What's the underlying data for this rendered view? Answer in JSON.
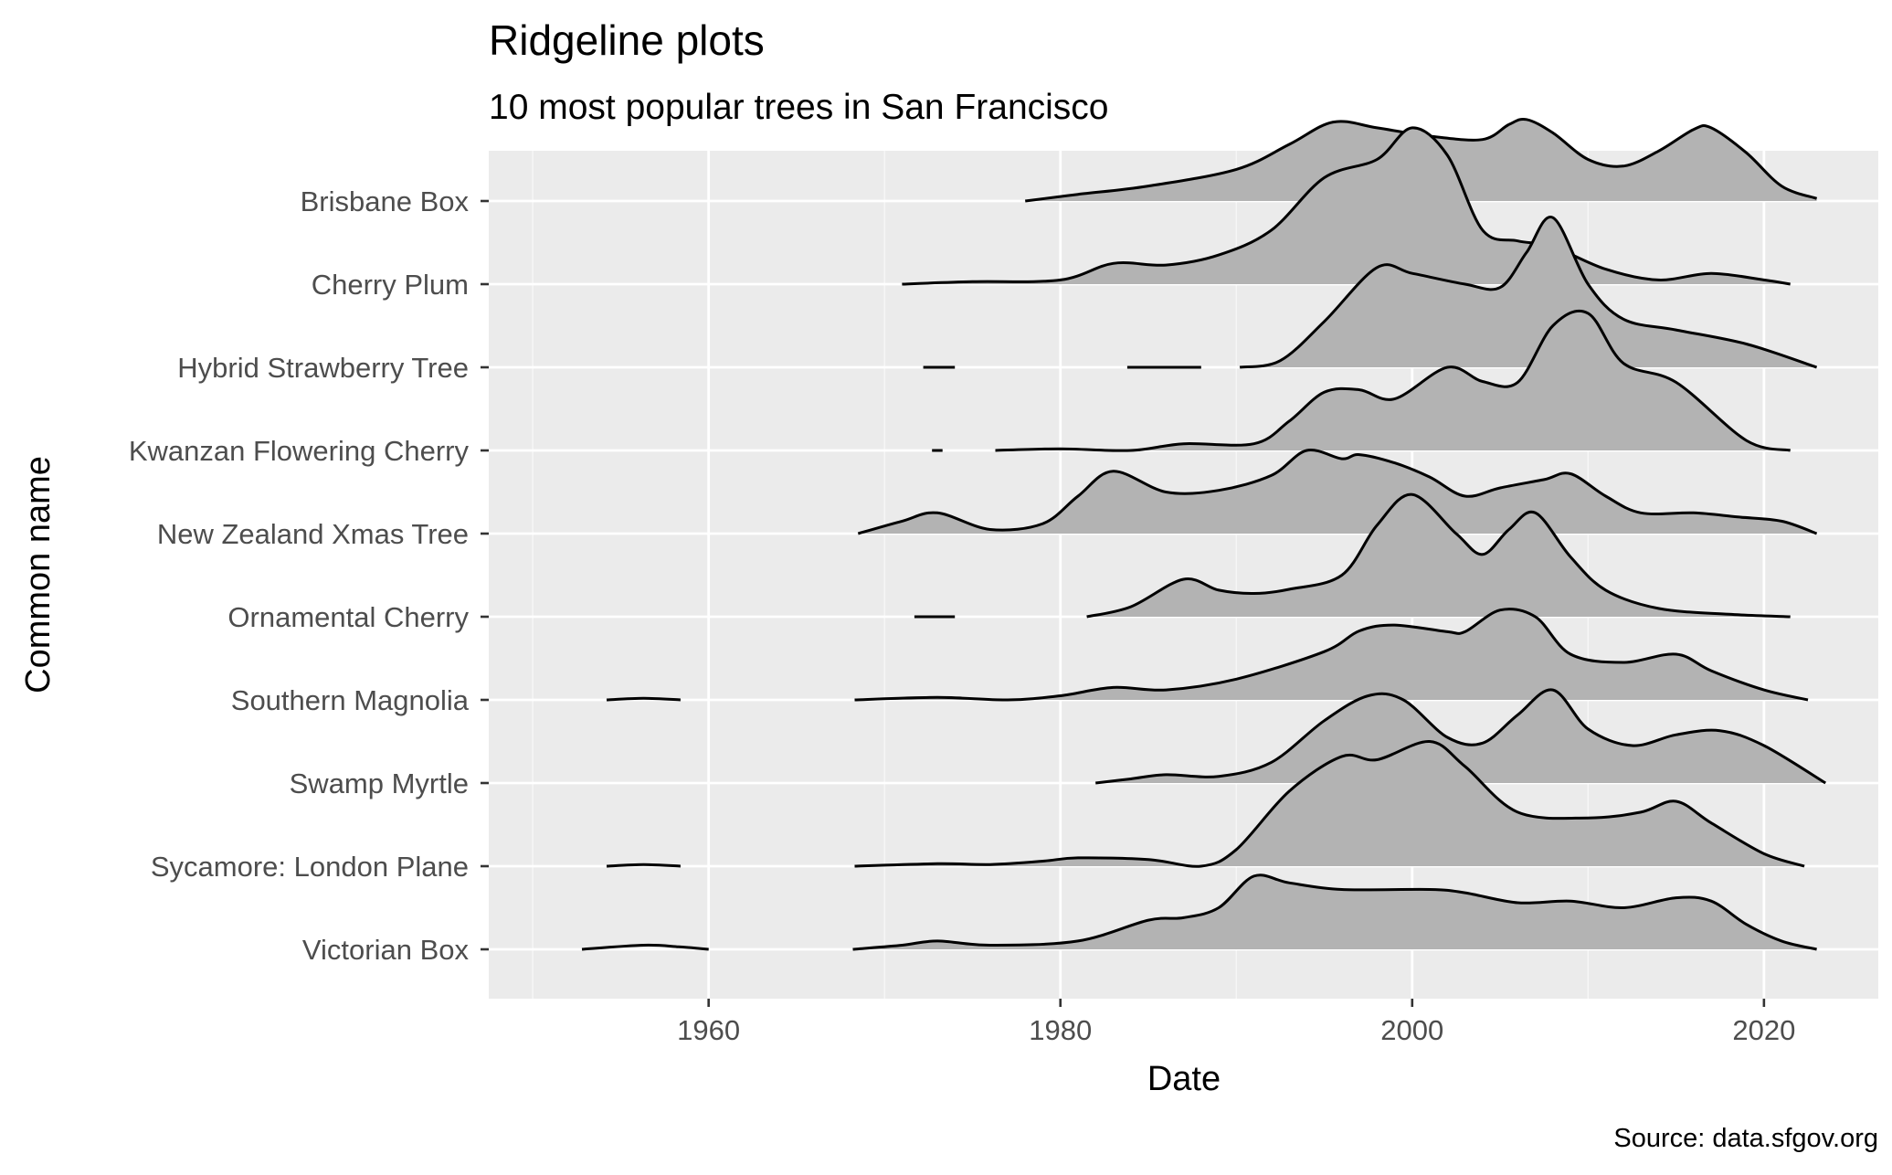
{
  "chart_data": {
    "type": "ridgeline",
    "title": "Ridgeline plots",
    "subtitle": "10 most popular trees in San Francisco",
    "xlabel": "Date",
    "ylabel": "Common name",
    "caption": "Source: data.sfgov.org",
    "xlim": [
      1947.5,
      2026.5
    ],
    "x_ticks": [
      1960,
      1980,
      2000,
      2020
    ],
    "grid": true,
    "fill_color": "#b3b3b3",
    "line_color": "#000000",
    "panel_background": "#ebebeb",
    "categories": [
      "Brisbane Box",
      "Cherry Plum",
      "Hybrid Strawberry Tree",
      "Kwanzan Flowering Cherry",
      "New Zealand Xmas Tree",
      "Ornamental Cherry",
      "Southern Magnolia",
      "Swamp Myrtle",
      "Sycamore: London Plane",
      "Victorian Box"
    ],
    "series": [
      {
        "name": "Brisbane Box",
        "fragments": [],
        "curve": [
          [
            1978.0,
            0.0
          ],
          [
            1981,
            0.08
          ],
          [
            1985,
            0.18
          ],
          [
            1990,
            0.38
          ],
          [
            1993,
            0.68
          ],
          [
            1995.5,
            0.95
          ],
          [
            1998,
            0.88
          ],
          [
            2001,
            0.78
          ],
          [
            2004,
            0.74
          ],
          [
            2005.5,
            0.92
          ],
          [
            2006.5,
            0.98
          ],
          [
            2008,
            0.82
          ],
          [
            2010,
            0.5
          ],
          [
            2012,
            0.42
          ],
          [
            2014,
            0.6
          ],
          [
            2016,
            0.86
          ],
          [
            2017,
            0.88
          ],
          [
            2019,
            0.58
          ],
          [
            2021,
            0.18
          ],
          [
            2023,
            0.03
          ]
        ]
      },
      {
        "name": "Cherry Plum",
        "fragments": [],
        "curve": [
          [
            1971,
            0.0
          ],
          [
            1975,
            0.03
          ],
          [
            1980,
            0.05
          ],
          [
            1983,
            0.25
          ],
          [
            1986,
            0.23
          ],
          [
            1989,
            0.35
          ],
          [
            1992,
            0.65
          ],
          [
            1995,
            1.28
          ],
          [
            1998,
            1.5
          ],
          [
            2000,
            1.88
          ],
          [
            2002,
            1.55
          ],
          [
            2004,
            0.65
          ],
          [
            2006,
            0.52
          ],
          [
            2008,
            0.45
          ],
          [
            2011,
            0.18
          ],
          [
            2014,
            0.05
          ],
          [
            2017,
            0.13
          ],
          [
            2020,
            0.05
          ],
          [
            2021.5,
            0.0
          ]
        ]
      },
      {
        "name": "Hybrid Strawberry Tree",
        "fragments": [
          [
            [
              1972.2,
              0.0
            ],
            [
              1974,
              0.0
            ]
          ],
          [
            [
              1983.8,
              0.0
            ],
            [
              1988,
              0.0
            ]
          ]
        ],
        "curve": [
          [
            1990.2,
            0.0
          ],
          [
            1992.5,
            0.08
          ],
          [
            1995,
            0.55
          ],
          [
            1998,
            1.2
          ],
          [
            2000,
            1.13
          ],
          [
            2003,
            1.0
          ],
          [
            2005,
            0.96
          ],
          [
            2006.5,
            1.38
          ],
          [
            2008,
            1.8
          ],
          [
            2010,
            1.0
          ],
          [
            2012,
            0.58
          ],
          [
            2015,
            0.45
          ],
          [
            2019,
            0.28
          ],
          [
            2023,
            0.0
          ]
        ]
      },
      {
        "name": "Kwanzan Flowering Cherry",
        "fragments": [
          [
            [
              1972.7,
              0.0
            ],
            [
              1973.3,
              0.0
            ]
          ]
        ],
        "curve": [
          [
            1976.3,
            0.0
          ],
          [
            1980,
            0.02
          ],
          [
            1984,
            0.0
          ],
          [
            1987,
            0.08
          ],
          [
            1991,
            0.08
          ],
          [
            1993,
            0.35
          ],
          [
            1995,
            0.7
          ],
          [
            1997,
            0.73
          ],
          [
            1999,
            0.62
          ],
          [
            2002,
            1.0
          ],
          [
            2004,
            0.83
          ],
          [
            2006,
            0.82
          ],
          [
            2008,
            1.5
          ],
          [
            2010,
            1.65
          ],
          [
            2012,
            1.05
          ],
          [
            2015,
            0.82
          ],
          [
            2019,
            0.12
          ],
          [
            2021.5,
            0.0
          ]
        ]
      },
      {
        "name": "New Zealand Xmas Tree",
        "fragments": [],
        "curve": [
          [
            1968.5,
            0.0
          ],
          [
            1971,
            0.15
          ],
          [
            1973,
            0.25
          ],
          [
            1976,
            0.05
          ],
          [
            1979,
            0.12
          ],
          [
            1981,
            0.45
          ],
          [
            1983,
            0.75
          ],
          [
            1986,
            0.5
          ],
          [
            1989,
            0.52
          ],
          [
            1992,
            0.7
          ],
          [
            1994,
            1.0
          ],
          [
            1996,
            0.9
          ],
          [
            1997,
            0.95
          ],
          [
            1999,
            0.85
          ],
          [
            2001,
            0.68
          ],
          [
            2003,
            0.45
          ],
          [
            2005,
            0.55
          ],
          [
            2007.5,
            0.65
          ],
          [
            2009,
            0.72
          ],
          [
            2011,
            0.45
          ],
          [
            2013,
            0.25
          ],
          [
            2016,
            0.25
          ],
          [
            2018.5,
            0.2
          ],
          [
            2021,
            0.15
          ],
          [
            2023,
            0.0
          ]
        ]
      },
      {
        "name": "Ornamental Cherry",
        "fragments": [
          [
            [
              1971.7,
              0.0
            ],
            [
              1974,
              0.0
            ]
          ]
        ],
        "curve": [
          [
            1981.5,
            0.0
          ],
          [
            1984,
            0.12
          ],
          [
            1987,
            0.45
          ],
          [
            1989,
            0.32
          ],
          [
            1991,
            0.28
          ],
          [
            1993,
            0.33
          ],
          [
            1996,
            0.5
          ],
          [
            1998,
            1.1
          ],
          [
            2000,
            1.47
          ],
          [
            2002.5,
            1.0
          ],
          [
            2004,
            0.75
          ],
          [
            2005.5,
            1.05
          ],
          [
            2007,
            1.25
          ],
          [
            2009,
            0.72
          ],
          [
            2011,
            0.32
          ],
          [
            2014,
            0.1
          ],
          [
            2018,
            0.03
          ],
          [
            2021.5,
            0.0
          ]
        ]
      },
      {
        "name": "Southern Magnolia",
        "fragments": [
          [
            [
              1954.2,
              0.0
            ],
            [
              1956.3,
              0.02
            ],
            [
              1958.4,
              0.0
            ]
          ]
        ],
        "curve": [
          [
            1968.3,
            0.0
          ],
          [
            1973,
            0.03
          ],
          [
            1977,
            0.0
          ],
          [
            1980,
            0.05
          ],
          [
            1983,
            0.15
          ],
          [
            1986,
            0.12
          ],
          [
            1990,
            0.25
          ],
          [
            1995,
            0.58
          ],
          [
            1997,
            0.83
          ],
          [
            1999,
            0.9
          ],
          [
            2002,
            0.82
          ],
          [
            2003,
            0.82
          ],
          [
            2005,
            1.08
          ],
          [
            2007,
            1.0
          ],
          [
            2009,
            0.55
          ],
          [
            2012,
            0.45
          ],
          [
            2015,
            0.55
          ],
          [
            2017,
            0.35
          ],
          [
            2020,
            0.12
          ],
          [
            2022.5,
            0.0
          ]
        ]
      },
      {
        "name": "Swamp Myrtle",
        "fragments": [],
        "curve": [
          [
            1982,
            0.0
          ],
          [
            1984,
            0.05
          ],
          [
            1986,
            0.1
          ],
          [
            1989,
            0.08
          ],
          [
            1992,
            0.25
          ],
          [
            1995,
            0.75
          ],
          [
            1997.5,
            1.05
          ],
          [
            1999.5,
            1.0
          ],
          [
            2002,
            0.55
          ],
          [
            2004,
            0.48
          ],
          [
            2006,
            0.82
          ],
          [
            2008,
            1.12
          ],
          [
            2010,
            0.65
          ],
          [
            2012.5,
            0.45
          ],
          [
            2015,
            0.58
          ],
          [
            2017.5,
            0.63
          ],
          [
            2020,
            0.45
          ],
          [
            2023.5,
            0.0
          ]
        ]
      },
      {
        "name": "Sycamore: London Plane",
        "fragments": [
          [
            [
              1954.2,
              0.0
            ],
            [
              1956.3,
              0.02
            ],
            [
              1958.4,
              0.0
            ]
          ]
        ],
        "curve": [
          [
            1968.3,
            0.0
          ],
          [
            1973,
            0.03
          ],
          [
            1976,
            0.02
          ],
          [
            1979,
            0.06
          ],
          [
            1981,
            0.1
          ],
          [
            1985,
            0.08
          ],
          [
            1988,
            0.0
          ],
          [
            1990,
            0.2
          ],
          [
            1993,
            0.9
          ],
          [
            1996,
            1.32
          ],
          [
            1998,
            1.28
          ],
          [
            2001,
            1.5
          ],
          [
            2003,
            1.2
          ],
          [
            2006,
            0.65
          ],
          [
            2010,
            0.58
          ],
          [
            2013,
            0.65
          ],
          [
            2015,
            0.78
          ],
          [
            2017,
            0.52
          ],
          [
            2020,
            0.15
          ],
          [
            2022.3,
            0.0
          ]
        ]
      },
      {
        "name": "Victorian Box",
        "fragments": [
          [
            [
              1952.8,
              0.0
            ],
            [
              1956.3,
              0.05
            ],
            [
              1958.3,
              0.03
            ],
            [
              1960,
              0.0
            ]
          ]
        ],
        "curve": [
          [
            1968.2,
            0.0
          ],
          [
            1971,
            0.05
          ],
          [
            1973,
            0.1
          ],
          [
            1976,
            0.05
          ],
          [
            1981,
            0.1
          ],
          [
            1985,
            0.35
          ],
          [
            1987,
            0.38
          ],
          [
            1989,
            0.5
          ],
          [
            1991,
            0.88
          ],
          [
            1993,
            0.8
          ],
          [
            1996,
            0.72
          ],
          [
            2001,
            0.72
          ],
          [
            2003,
            0.68
          ],
          [
            2006,
            0.56
          ],
          [
            2009,
            0.58
          ],
          [
            2012,
            0.5
          ],
          [
            2015,
            0.62
          ],
          [
            2017,
            0.58
          ],
          [
            2019,
            0.3
          ],
          [
            2021,
            0.1
          ],
          [
            2023,
            0.0
          ]
        ]
      }
    ]
  }
}
